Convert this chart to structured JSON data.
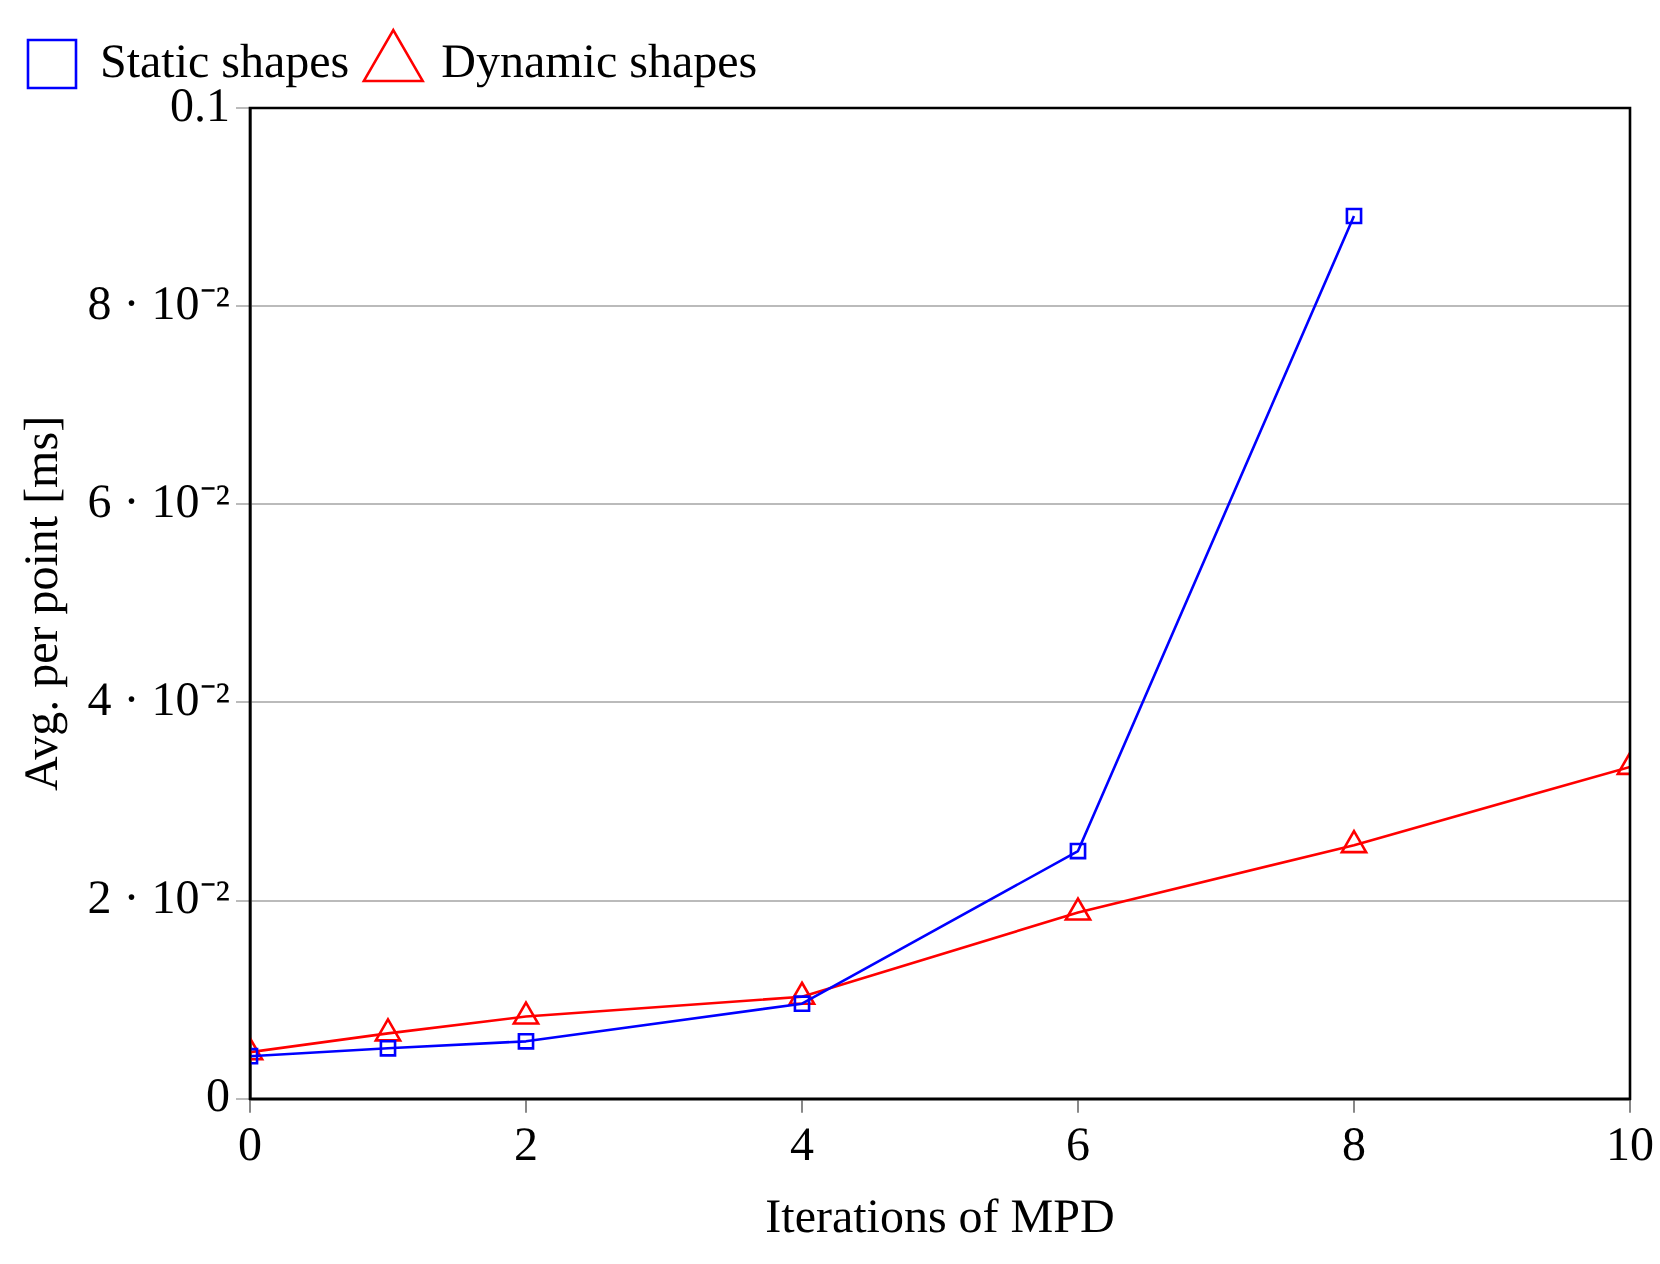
{
  "chart_data": {
    "type": "line",
    "xlabel": "Iterations of MPD",
    "ylabel": "Avg. per point [ms]",
    "xlim": [
      0,
      10
    ],
    "xticks": [
      0,
      2,
      4,
      6,
      8,
      10
    ],
    "ylim": [
      0,
      0.1
    ],
    "yticks": [
      0,
      {
        "value": 0.02,
        "label": "2 · 10⁻²"
      },
      {
        "value": 0.04,
        "label": "4 · 10⁻²"
      },
      {
        "value": 0.06,
        "label": "6 · 10⁻²"
      },
      {
        "value": 0.08,
        "label": "8 · 10⁻²"
      },
      0.1
    ],
    "grid": "y",
    "legend": "top left",
    "line_style": "solid",
    "series": [
      {
        "name": "Static shapes",
        "color": "#0000ff",
        "marker": "square",
        "x": [
          0,
          1,
          2,
          4,
          6,
          8
        ],
        "values": [
          0.0043,
          0.0051,
          0.0058,
          0.0096,
          0.025,
          0.0891
        ]
      },
      {
        "name": "Dynamic shapes",
        "color": "#ff0000",
        "marker": "triangle",
        "x": [
          0,
          1,
          2,
          4,
          6,
          8,
          10
        ],
        "values": [
          0.0047,
          0.0066,
          0.0083,
          0.0103,
          0.0188,
          0.0256,
          0.0335
        ]
      }
    ]
  }
}
